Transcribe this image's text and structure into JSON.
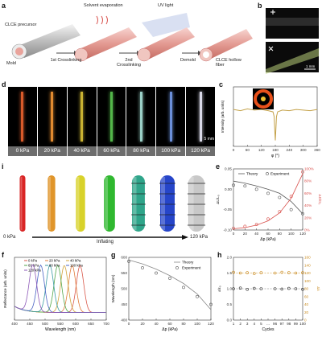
{
  "panel_labels": {
    "a": "a",
    "b": "b",
    "c": "c",
    "d": "d",
    "e": "e",
    "f": "f",
    "g": "g",
    "h": "h",
    "i": "i"
  },
  "panel_a": {
    "mold": "Mold",
    "precursor": "CLCE precursor",
    "step1": "1st Crosslinking",
    "solvent": "Solvent evaporation",
    "step2": "2nd Crosslinking",
    "uv": "UV light",
    "demold": "Demold",
    "fiber": "CLCE hollow fiber"
  },
  "panel_b": {
    "scalebar": "1 mm"
  },
  "panel_d": {
    "captions": [
      "0 kPa",
      "20 kPa",
      "40 kPa",
      "60 kPa",
      "80 kPa",
      "100 kPa",
      "120 kPa"
    ],
    "scalebar": "5 mm",
    "fiber_colors": [
      "#d85a2a",
      "#e08a30",
      "#c9b232",
      "#53b74a",
      "#9bd0c7",
      "#6b8fd9",
      "#d9d9e8"
    ]
  },
  "panel_i": {
    "start_label": "0 kPa",
    "end_label": "120 kPa",
    "arrow_label": "Inflating",
    "tube_colors": [
      "#d92525",
      "#e0952a",
      "#d8d22a",
      "#2fb82f",
      "#2fa58a",
      "#2645c9",
      "#c8c8c8"
    ]
  },
  "chart_data": [
    {
      "id": "c",
      "type": "line",
      "xlabel": "φ (°)",
      "ylabel": "Intensity (arb. units)",
      "xlim": [
        0,
        360
      ],
      "xticks": [
        "0",
        "60",
        "120",
        "180",
        "240",
        "300",
        "360"
      ],
      "x": [
        0,
        30,
        60,
        90,
        120,
        150,
        170,
        175,
        178,
        180,
        182,
        185,
        190,
        210,
        240,
        270,
        300,
        330,
        360
      ],
      "y": [
        0.62,
        0.6,
        0.63,
        0.61,
        0.62,
        0.6,
        0.58,
        0.5,
        0.25,
        0.1,
        0.25,
        0.5,
        0.58,
        0.61,
        0.6,
        0.62,
        0.61,
        0.6,
        0.62
      ],
      "color": "#c4a24a"
    },
    {
      "id": "e",
      "type": "line",
      "xlabel": "Δp (kPa)",
      "ylabel": "ΔL/L₀",
      "ylabel_right": "ΔD/D₀",
      "xticks": [
        "0",
        "20",
        "40",
        "60",
        "80",
        "100",
        "120"
      ],
      "yticks_left": [
        "-0.10",
        "-0.05",
        "0.00",
        "0.05"
      ],
      "yticks_right": [
        "0%",
        "20%",
        "40%",
        "60%",
        "80%",
        "100%"
      ],
      "legend": [
        "Theory",
        "Experiment"
      ],
      "series": [
        {
          "name": "Theory",
          "x": [
            0,
            20,
            40,
            60,
            80,
            100,
            120
          ],
          "values": [
            0.02,
            0.015,
            0.008,
            0.0,
            -0.01,
            -0.03,
            -0.06
          ],
          "color": "#555555"
        },
        {
          "name": "Experiment",
          "x": [
            0,
            20,
            40,
            60,
            80,
            100,
            120
          ],
          "values": [
            0.01,
            0.008,
            0.0,
            -0.01,
            -0.02,
            -0.05,
            -0.06
          ],
          "color": "#555555"
        },
        {
          "name": "Theory",
          "x": [
            0,
            20,
            40,
            60,
            80,
            100,
            120
          ],
          "values": [
            2,
            4,
            8,
            15,
            28,
            52,
            92
          ],
          "color": "#d9534f",
          "axis": "right"
        },
        {
          "name": "Experiment",
          "x": [
            0,
            20,
            40,
            60,
            80,
            100,
            120
          ],
          "values": [
            3,
            6,
            9,
            18,
            30,
            55,
            95
          ],
          "color": "#d9534f",
          "axis": "right"
        }
      ]
    },
    {
      "id": "f",
      "type": "line",
      "xlabel": "Wavelength (nm)",
      "ylabel": "Reflectance (arb. units)",
      "xticks": [
        "400",
        "450",
        "500",
        "550",
        "600",
        "650",
        "700"
      ],
      "xlim": [
        370,
        720
      ],
      "series": [
        {
          "name": "0 kPa",
          "peak": 620,
          "color": "#d9584a"
        },
        {
          "name": "20 kPa",
          "peak": 590,
          "color": "#e07a39"
        },
        {
          "name": "40 kPa",
          "peak": 560,
          "color": "#d1a33a"
        },
        {
          "name": "60 kPa",
          "peak": 535,
          "color": "#52a64a"
        },
        {
          "name": "80 kPa",
          "peak": 505,
          "color": "#3b9ba3"
        },
        {
          "name": "100 kPa",
          "peak": 470,
          "color": "#4a63c4"
        },
        {
          "name": "120 kPa",
          "peak": 440,
          "color": "#8e5ab8"
        }
      ]
    },
    {
      "id": "g",
      "type": "scatter",
      "xlabel": "Δp (kPa)",
      "ylabel": "Wavelength (nm)",
      "xticks": [
        "0",
        "20",
        "40",
        "60",
        "80",
        "100",
        "120"
      ],
      "yticks": [
        "400",
        "450",
        "500",
        "550",
        "600"
      ],
      "ylim": [
        380,
        620
      ],
      "legend": [
        "Theory",
        "Experiment"
      ],
      "x": [
        0,
        20,
        40,
        60,
        80,
        100,
        120
      ],
      "theory": [
        610,
        595,
        575,
        550,
        520,
        480,
        420
      ],
      "experiment": [
        605,
        580,
        560,
        540,
        505,
        470,
        440
      ]
    },
    {
      "id": "h",
      "type": "scatter",
      "xlabel": "Cycles",
      "ylabel": "ε/ε₀",
      "ylabel_right": "Δλ",
      "xticks": [
        "1",
        "2",
        "3",
        "4",
        "5",
        "...",
        "96",
        "97",
        "98",
        "99",
        "100"
      ],
      "yticks_left": [
        "0.0",
        "0.5",
        "1.0",
        "1.5",
        "2.0"
      ],
      "yticks_right": [
        "0",
        "20",
        "40",
        "60",
        "80",
        "100",
        "120",
        "140",
        "160"
      ],
      "strain": [
        1.0,
        1.02,
        0.98,
        1.01,
        1.0,
        1.0,
        0.99,
        1.01,
        1.0,
        0.98
      ],
      "shift": [
        122,
        120,
        121,
        119,
        121,
        120,
        122,
        121,
        120,
        121
      ]
    }
  ]
}
